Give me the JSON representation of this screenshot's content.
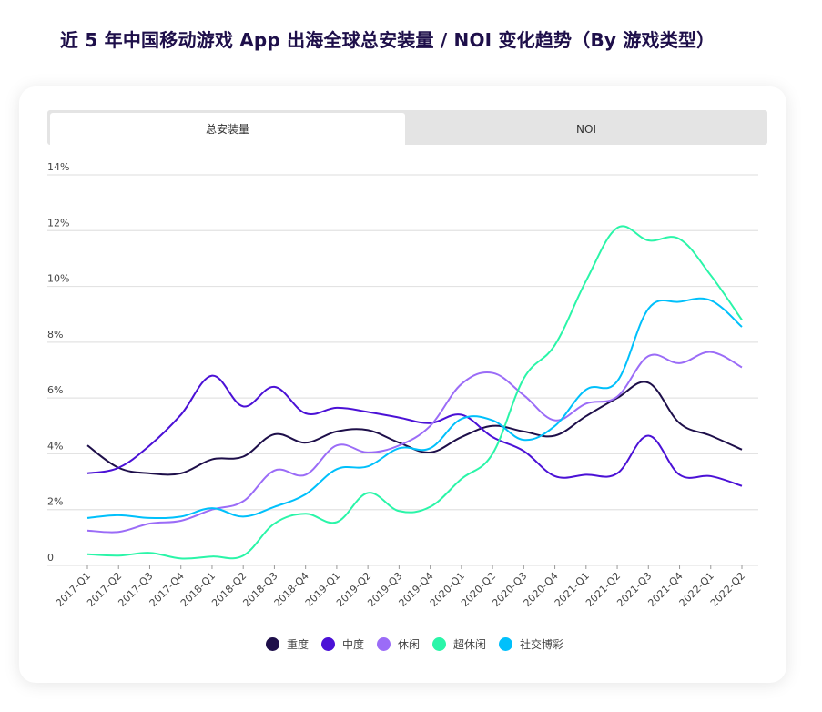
{
  "title": "近 5 年中国移动游戏 App 出海全球总安装量 / NOI 变化趋势（By 游戏类型）",
  "tabs": [
    {
      "label": "总安装量",
      "active": true
    },
    {
      "label": "NOI",
      "active": false
    }
  ],
  "chart_data": {
    "type": "line",
    "title": "近 5 年中国移动游戏 App 出海全球总安装量 / NOI 变化趋势（By 游戏类型）",
    "xlabel": "",
    "ylabel": "",
    "ylim": [
      0,
      14
    ],
    "yticks": [
      0,
      2,
      4,
      6,
      8,
      10,
      12,
      14
    ],
    "ytick_labels": [
      "0",
      "2%",
      "4%",
      "6%",
      "8%",
      "10%",
      "12%",
      "14%"
    ],
    "grid": true,
    "legend_position": "bottom",
    "categories": [
      "2017-Q1",
      "2017-Q2",
      "2017-Q3",
      "2017-Q4",
      "2018-Q1",
      "2018-Q2",
      "2018-Q3",
      "2018-Q4",
      "2019-Q1",
      "2019-Q2",
      "2019-Q3",
      "2019-Q4",
      "2020-Q1",
      "2020-Q2",
      "2020-Q3",
      "2020-Q4",
      "2021-Q1",
      "2021-Q2",
      "2021-Q3",
      "2021-Q4",
      "2022-Q1",
      "2022-Q2"
    ],
    "series": [
      {
        "name": "重度",
        "color": "#1e0f4a",
        "values": [
          4.3,
          3.5,
          3.3,
          3.3,
          3.8,
          3.9,
          4.7,
          4.4,
          4.8,
          4.85,
          4.4,
          4.05,
          4.6,
          5.0,
          4.8,
          4.65,
          5.35,
          6.0,
          6.55,
          5.1,
          4.65,
          4.15
        ]
      },
      {
        "name": "中度",
        "color": "#4b11d6",
        "values": [
          3.3,
          3.5,
          4.3,
          5.4,
          6.8,
          5.7,
          6.4,
          5.45,
          5.65,
          5.5,
          5.3,
          5.1,
          5.4,
          4.6,
          4.1,
          3.2,
          3.25,
          3.3,
          4.65,
          3.25,
          3.2,
          2.85
        ]
      },
      {
        "name": "休闲",
        "color": "#9b6cf7",
        "values": [
          1.25,
          1.2,
          1.5,
          1.6,
          2.0,
          2.3,
          3.4,
          3.25,
          4.3,
          4.05,
          4.3,
          5.0,
          6.5,
          6.9,
          6.1,
          5.2,
          5.8,
          6.05,
          7.5,
          7.25,
          7.65,
          7.1
        ]
      },
      {
        "name": "超休闲",
        "color": "#2af5a8",
        "values": [
          0.4,
          0.35,
          0.45,
          0.25,
          0.32,
          0.35,
          1.5,
          1.85,
          1.55,
          2.6,
          1.95,
          2.1,
          3.1,
          4.0,
          6.7,
          7.9,
          10.2,
          12.1,
          11.65,
          11.7,
          10.4,
          8.8
        ]
      },
      {
        "name": "社交博彩",
        "color": "#00c0fb",
        "values": [
          1.7,
          1.8,
          1.7,
          1.75,
          2.05,
          1.75,
          2.1,
          2.55,
          3.45,
          3.55,
          4.2,
          4.2,
          5.25,
          5.2,
          4.5,
          5.0,
          6.3,
          6.6,
          9.2,
          9.45,
          9.5,
          8.55
        ]
      }
    ]
  }
}
